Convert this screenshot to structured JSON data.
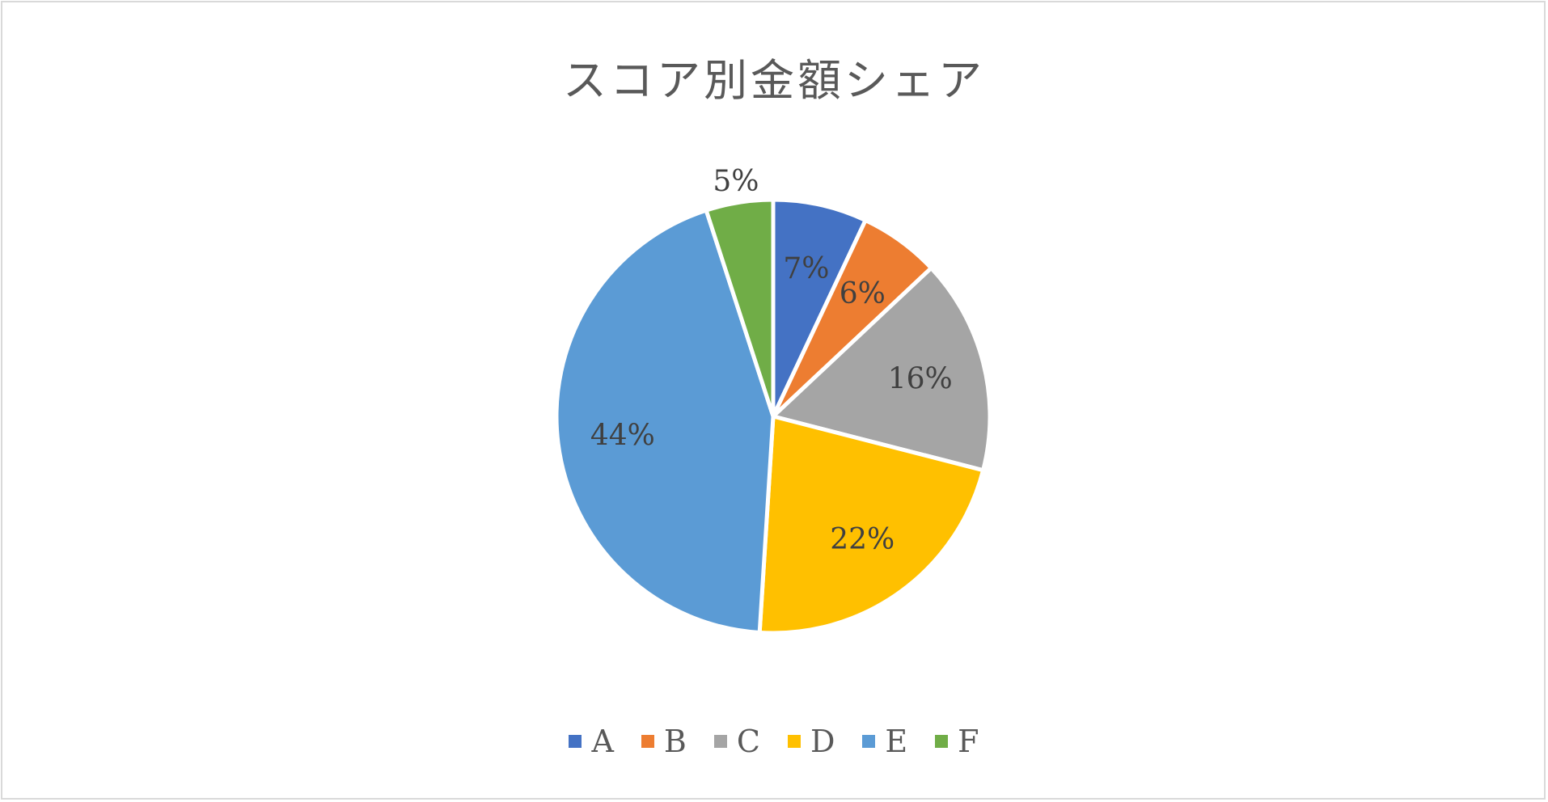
{
  "chart_data": {
    "type": "pie",
    "title": "スコア別金額シェア",
    "categories": [
      "A",
      "B",
      "C",
      "D",
      "E",
      "F"
    ],
    "values": [
      7,
      6,
      16,
      22,
      44,
      5
    ],
    "labels": [
      "7%",
      "6%",
      "16%",
      "22%",
      "44%",
      "5%"
    ],
    "colors": [
      "#4472C4",
      "#ED7D31",
      "#A5A5A5",
      "#FFC000",
      "#5B9BD5",
      "#70AD47"
    ],
    "start": "top",
    "direction": "clockwise",
    "legend_position": "bottom"
  }
}
